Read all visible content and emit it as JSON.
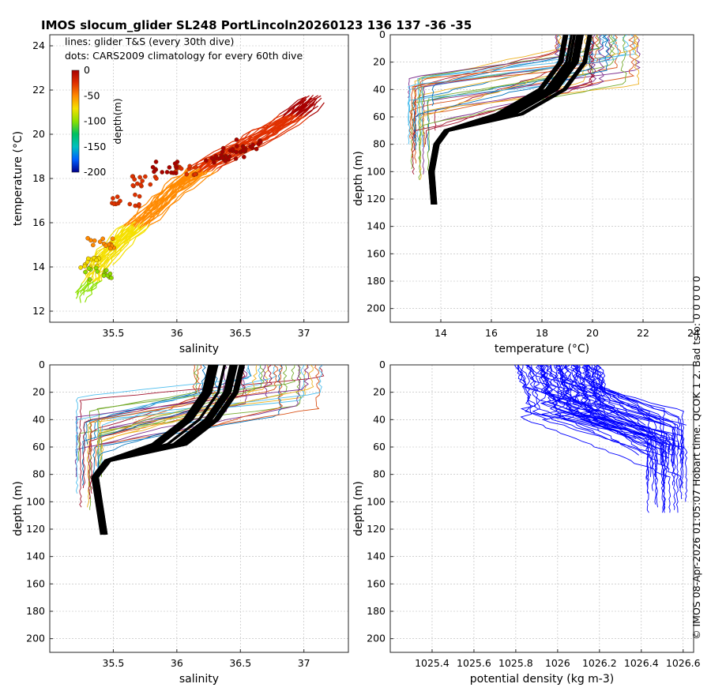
{
  "title": "IMOS slocum_glider SL248 PortLincoln20260123 136  137  -36  -35",
  "side_note": "© IMOS 08-Apr-2026 01:05:07 Hobart time. QCOK 1  2. Bad tsfo: 0  0  0  0  0",
  "legend_note": {
    "line1": "lines: glider T&S (every 30th dive)",
    "line2": "dots: CARS2009 climatology for every 60th dive"
  },
  "colorbar": {
    "label": "depth(m)",
    "ticks": [
      "0",
      "-50",
      "-100",
      "-150",
      "-200"
    ],
    "colors": [
      "#a80000",
      "#e03000",
      "#ff8a00",
      "#f5e000",
      "#8ce000",
      "#00c060",
      "#00c0c0",
      "#0060ff",
      "#00008c"
    ]
  },
  "series_colors": [
    "#0072bd",
    "#d95319",
    "#edb120",
    "#7e2f8e",
    "#77ac30",
    "#4dbeee",
    "#a2142f"
  ],
  "chart_data": [
    {
      "id": "ts",
      "type": "scatter",
      "xlabel": "salinity",
      "ylabel": "temperature (°C)",
      "xlim": [
        35.0,
        37.35
      ],
      "ylim": [
        11.5,
        24.5
      ],
      "xticks": [
        35.5,
        36,
        36.5,
        37
      ],
      "xtick_labels": [
        "35.5",
        "36",
        "36.5",
        "37"
      ],
      "yticks": [
        12,
        14,
        16,
        18,
        20,
        22,
        24
      ],
      "ytick_labels": [
        "12",
        "14",
        "16",
        "18",
        "20",
        "22",
        "24"
      ],
      "glider_line_path": [
        [
          35.27,
          12.7
        ],
        [
          35.35,
          13.4
        ],
        [
          35.42,
          14.2
        ],
        [
          35.62,
          15.4
        ],
        [
          35.85,
          16.6
        ],
        [
          36.05,
          17.7
        ],
        [
          36.3,
          18.7
        ],
        [
          36.6,
          19.6
        ],
        [
          36.9,
          20.6
        ],
        [
          37.15,
          21.8
        ]
      ],
      "climatology_clusters": [
        {
          "s": 36.45,
          "t": 19.1,
          "depth": -5
        },
        {
          "s": 36.3,
          "t": 18.8,
          "depth": -10
        },
        {
          "s": 36.55,
          "t": 19.5,
          "depth": -8
        },
        {
          "s": 36.1,
          "t": 18.4,
          "depth": -15
        },
        {
          "s": 35.9,
          "t": 18.5,
          "depth": -12
        },
        {
          "s": 35.75,
          "t": 17.9,
          "depth": -25
        },
        {
          "s": 35.6,
          "t": 17.0,
          "depth": -35
        },
        {
          "s": 35.4,
          "t": 15.1,
          "depth": -55
        },
        {
          "s": 35.32,
          "t": 14.2,
          "depth": -70
        },
        {
          "s": 35.38,
          "t": 13.7,
          "depth": -100
        }
      ]
    },
    {
      "id": "temp_profile",
      "type": "line",
      "xlabel": "temperature (°C)",
      "ylabel": "depth (m)",
      "xlim": [
        12.0,
        24.0
      ],
      "ylim": [
        210,
        0
      ],
      "xticks": [
        14,
        16,
        18,
        20,
        22,
        24
      ],
      "xtick_labels": [
        "14",
        "16",
        "18",
        "20",
        "22",
        "24"
      ],
      "yticks": [
        0,
        20,
        40,
        60,
        80,
        100,
        120,
        140,
        160,
        180,
        200
      ],
      "ytick_labels": [
        "0",
        "20",
        "40",
        "60",
        "80",
        "100",
        "120",
        "140",
        "160",
        "180",
        "200"
      ],
      "climatology_profile": [
        [
          19.2,
          0
        ],
        [
          19.0,
          20
        ],
        [
          18.2,
          40
        ],
        [
          16.5,
          58
        ],
        [
          14.2,
          70
        ],
        [
          13.8,
          80
        ],
        [
          13.6,
          100
        ],
        [
          13.7,
          124
        ]
      ]
    },
    {
      "id": "sal_profile",
      "type": "line",
      "xlabel": "salinity",
      "ylabel": "depth (m)",
      "xlim": [
        35.0,
        37.35
      ],
      "ylim": [
        210,
        0
      ],
      "xticks": [
        35.5,
        36,
        36.5,
        37
      ],
      "xtick_labels": [
        "35.5",
        "36",
        "36.5",
        "37"
      ],
      "yticks": [
        0,
        20,
        40,
        60,
        80,
        100,
        120,
        140,
        160,
        180,
        200
      ],
      "ytick_labels": [
        "0",
        "20",
        "40",
        "60",
        "80",
        "100",
        "120",
        "140",
        "160",
        "180",
        "200"
      ],
      "climatology_profile": [
        [
          36.35,
          0
        ],
        [
          36.3,
          20
        ],
        [
          36.15,
          40
        ],
        [
          35.9,
          58
        ],
        [
          35.45,
          70
        ],
        [
          35.35,
          82
        ],
        [
          35.38,
          100
        ],
        [
          35.42,
          124
        ]
      ]
    },
    {
      "id": "dens_profile",
      "type": "line",
      "xlabel": "potential density (kg m-3)",
      "ylabel": "depth (m)",
      "xlim": [
        1025.2,
        1026.65
      ],
      "ylim": [
        210,
        0
      ],
      "xticks": [
        1025.4,
        1025.6,
        1025.8,
        1026,
        1026.2,
        1026.4,
        1026.6
      ],
      "xtick_labels": [
        "1025.4",
        "1025.6",
        "1025.8",
        "1026",
        "1026.2",
        "1026.4",
        "1026.6"
      ],
      "yticks": [
        0,
        20,
        40,
        60,
        80,
        100,
        120,
        140,
        160,
        180,
        200
      ],
      "ytick_labels": [
        "0",
        "20",
        "40",
        "60",
        "80",
        "100",
        "120",
        "140",
        "160",
        "180",
        "200"
      ]
    }
  ]
}
